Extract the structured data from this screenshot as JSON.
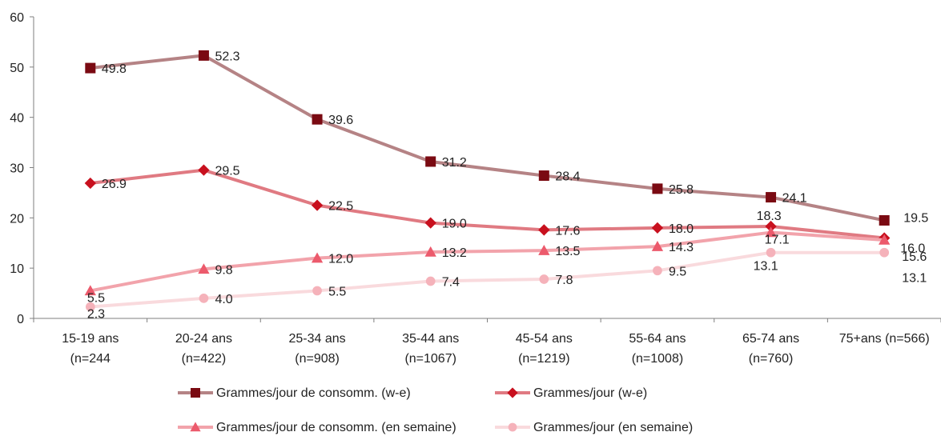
{
  "chart_data": {
    "type": "line",
    "title": "",
    "xlabel": "",
    "ylabel": "",
    "ylim": [
      0,
      60
    ],
    "yticks": [
      "0",
      "10",
      "20",
      "30",
      "40",
      "50",
      "60"
    ],
    "grid": false,
    "legend_position": "bottom",
    "categories": [
      [
        "15-19 ans",
        "(n=244"
      ],
      [
        "20-24 ans",
        "(n=422)"
      ],
      [
        "25-34 ans",
        "(n=908)"
      ],
      [
        "35-44 ans",
        "(n=1067)"
      ],
      [
        "45-54 ans",
        "(n=1219)"
      ],
      [
        "55-64 ans",
        "(n=1008)"
      ],
      [
        "65-74 ans",
        "(n=760)"
      ],
      [
        "75+ans (n=566)",
        ""
      ]
    ],
    "series": [
      {
        "name": "Grammes/jour de consomm. (w-e)",
        "values": [
          49.8,
          52.3,
          39.6,
          31.2,
          28.4,
          25.8,
          24.1,
          19.5
        ],
        "labels": [
          "49.8",
          "52.3",
          "39.6",
          "31.2",
          "28.4",
          "25.8",
          "24.1",
          "19.5"
        ],
        "line_color": "#b58385",
        "marker_color": "#7a0a12",
        "marker": "square"
      },
      {
        "name": "Grammes/jour (w-e)",
        "values": [
          26.9,
          29.5,
          22.5,
          19.0,
          17.6,
          18.0,
          18.3,
          16.0
        ],
        "labels": [
          "26.9",
          "29.5",
          "22.5",
          "19.0",
          "17.6",
          "18.0",
          "18.3",
          "16.0"
        ],
        "line_color": "#e07a82",
        "marker_color": "#c8101e",
        "marker": "diamond"
      },
      {
        "name": "Grammes/jour de consomm. (en semaine)",
        "values": [
          5.5,
          9.8,
          12.0,
          13.2,
          13.5,
          14.3,
          17.1,
          15.6
        ],
        "labels": [
          "5.5",
          "9.8",
          "12.0",
          "13.2",
          "13.5",
          "14.3",
          "17.1",
          "15.6"
        ],
        "line_color": "#f2a3ab",
        "marker_color": "#ec5a6c",
        "marker": "triangle"
      },
      {
        "name": "Grammes/jour (en semaine)",
        "values": [
          2.3,
          4.0,
          5.5,
          7.4,
          7.8,
          9.5,
          13.1,
          13.1
        ],
        "labels": [
          "2.3",
          "4.0",
          "5.5",
          "7.4",
          "7.8",
          "9.5",
          "13.1",
          "13.1"
        ],
        "line_color": "#f9dadd",
        "marker_color": "#f5b2ba",
        "marker": "circle"
      }
    ]
  }
}
